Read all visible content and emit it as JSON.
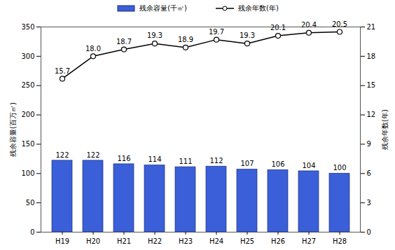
{
  "chart_data": {
    "type": "bar",
    "categories": [
      "H19",
      "H20",
      "H21",
      "H22",
      "H23",
      "H24",
      "H25",
      "H26",
      "H27",
      "H28"
    ],
    "series": [
      {
        "name": "残余容量(千㎥)",
        "type": "bar",
        "color": "#3a5fd9",
        "values": [
          122,
          122,
          116,
          114,
          111,
          112,
          107,
          106,
          104,
          100
        ]
      },
      {
        "name": "残余年数(年)",
        "type": "line",
        "axis": "y2",
        "color": "#000000",
        "marker": "circle",
        "values": [
          15.7,
          18.0,
          18.7,
          19.3,
          18.9,
          19.7,
          19.3,
          20.1,
          20.4,
          20.5
        ],
        "value_labels": [
          "15.7",
          "18.0",
          "18.7",
          "19.3",
          "18.9",
          "19.7",
          "19.3",
          "20.1",
          "20.4",
          "20.5"
        ]
      }
    ],
    "y_label": "残余容量(百万㎥)",
    "y2_label": "残余年数(年)",
    "ylim": [
      0,
      350
    ],
    "yticks": [
      0,
      50,
      100,
      150,
      200,
      250,
      300,
      350
    ],
    "y2lim": [
      0,
      21
    ],
    "y2ticks": [
      0,
      3,
      6,
      9,
      12,
      15,
      18,
      21
    ],
    "data_labels": true,
    "legend": "top",
    "grid": false
  }
}
